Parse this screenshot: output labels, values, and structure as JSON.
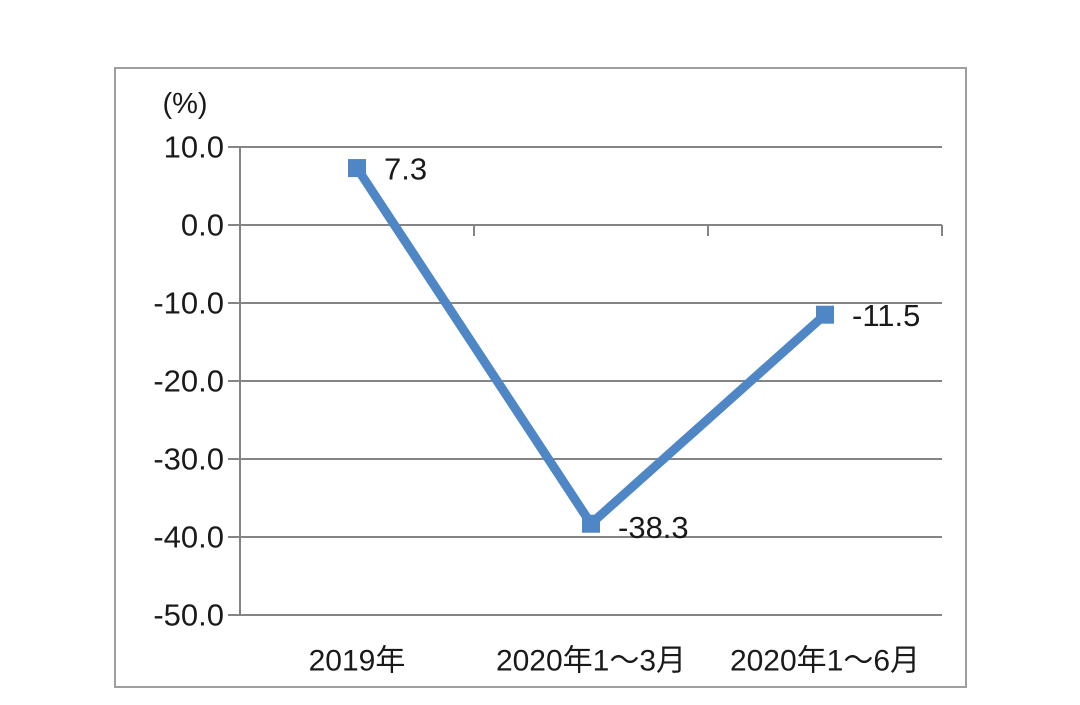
{
  "chart_data": {
    "type": "line",
    "title": "",
    "unit_label": "(%)",
    "categories": [
      "2019年",
      "2020年1～3月",
      "2020年1～6月"
    ],
    "values": [
      7.3,
      -38.3,
      -11.5
    ],
    "data_labels": [
      "7.3",
      "-38.3",
      "-11.5"
    ],
    "y_ticks": [
      "10.0",
      "0.0",
      "-10.0",
      "-20.0",
      "-30.0",
      "-40.0",
      "-50.0"
    ],
    "ylim": [
      -50,
      10
    ],
    "y_step": 10,
    "xlabel": "",
    "ylabel": "(%)",
    "grid": true,
    "legend": false,
    "marker": "square",
    "colors": {
      "line": "#4f86c6",
      "marker": "#4f86c6",
      "gridline": "#848484",
      "axis": "#848484",
      "text": "#1a1a1a",
      "frame_border": "#9e9e9e",
      "background": "#ffffff"
    }
  }
}
